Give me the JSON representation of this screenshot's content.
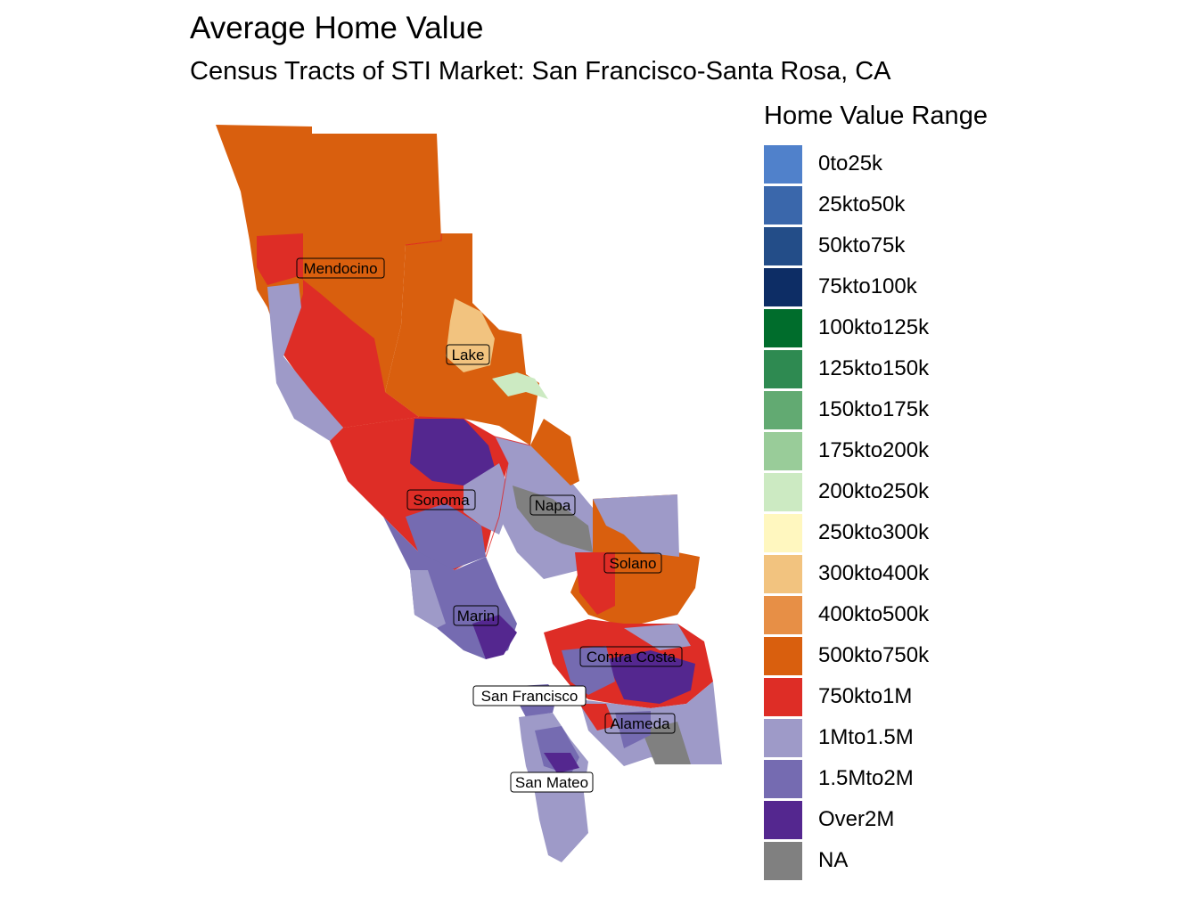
{
  "title": "Average Home Value",
  "subtitle": "Census Tracts of STI Market: San Francisco-Santa Rosa, CA",
  "legend": {
    "title": "Home Value Range",
    "items": [
      {
        "label": "0to25k",
        "color": "#5081cb"
      },
      {
        "label": "25kto50k",
        "color": "#3a67ab"
      },
      {
        "label": "50kto75k",
        "color": "#234d88"
      },
      {
        "label": "75kto100k",
        "color": "#0d2d65"
      },
      {
        "label": "100kto125k",
        "color": "#006d2c"
      },
      {
        "label": "125kto150k",
        "color": "#2e8a51"
      },
      {
        "label": "150kto175k",
        "color": "#62aa72"
      },
      {
        "label": "175kto200k",
        "color": "#99cc99"
      },
      {
        "label": "200kto250k",
        "color": "#cceac2"
      },
      {
        "label": "250kto300k",
        "color": "#fff7bf"
      },
      {
        "label": "300kto400k",
        "color": "#f2c37f"
      },
      {
        "label": "400kto500k",
        "color": "#e78f46"
      },
      {
        "label": "500kto750k",
        "color": "#d95f0e"
      },
      {
        "label": "750kto1M",
        "color": "#de2d26"
      },
      {
        "label": "1Mto1.5M",
        "color": "#9e9ac8"
      },
      {
        "label": "1.5Mto2M",
        "color": "#756bb1"
      },
      {
        "label": "Over2M",
        "color": "#54278f"
      },
      {
        "label": "NA",
        "color": "#808080"
      }
    ]
  },
  "counties": [
    {
      "name": "Mendocino",
      "fill": "#d95f0e"
    },
    {
      "name": "Lake",
      "fill": "#d95f0e"
    },
    {
      "name": "Sonoma",
      "fill": "#de2d26"
    },
    {
      "name": "Napa",
      "fill": "#9e9ac8"
    },
    {
      "name": "Solano",
      "fill": "#d95f0e"
    },
    {
      "name": "Marin",
      "fill": "#756bb1"
    },
    {
      "name": "Contra Costa",
      "fill": "#de2d26"
    },
    {
      "name": "San Francisco",
      "fill": "#756bb1"
    },
    {
      "name": "Alameda",
      "fill": "#9e9ac8"
    },
    {
      "name": "San Mateo",
      "fill": "#9e9ac8"
    }
  ]
}
